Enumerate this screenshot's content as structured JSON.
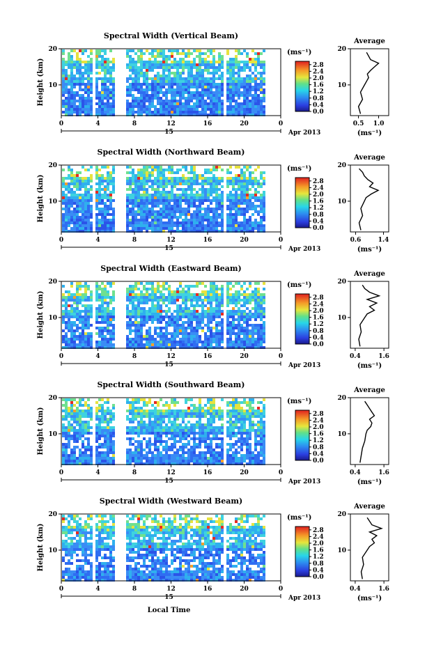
{
  "figure": {
    "xlabel": "Local Time",
    "date_label": "Apr 2013",
    "day_label": "15",
    "unit_label": "(ms⁻¹)",
    "ylabel": "Height (km)",
    "avg_title": "Average",
    "avg_xlabel": "(ms⁻¹)"
  },
  "chart_data": [
    {
      "type": "heatmap",
      "title": "Spectral Width (Vertical Beam)",
      "xlabel": "Local Time",
      "ylabel": "Height (km)",
      "x_ticks": [
        "0",
        "4",
        "8",
        "12",
        "16",
        "20",
        "0"
      ],
      "xlim": [
        0,
        24
      ],
      "y_ticks": [
        "10",
        "20"
      ],
      "ylim": [
        1.5,
        20
      ],
      "data_gaps_hours": [
        [
          3.3,
          3.6
        ],
        [
          5.8,
          6.8
        ],
        [
          17.5,
          17.8
        ],
        [
          22.2,
          24
        ]
      ],
      "colorbar": {
        "unit": "(ms⁻¹)",
        "ticks": [
          "0.0",
          "0.4",
          "0.8",
          "1.2",
          "1.6",
          "2.0",
          "2.4",
          "2.8"
        ],
        "range": [
          0,
          3.0
        ]
      },
      "average_profile": {
        "title": "Average",
        "xlabel": "(ms⁻¹)",
        "x_ticks": [
          "0.5",
          "1.0"
        ],
        "xlim": [
          0.3,
          1.25
        ],
        "height_km": [
          2,
          4,
          6,
          8,
          10,
          11,
          12,
          13,
          14,
          15,
          16,
          17,
          18,
          19
        ],
        "values": [
          0.55,
          0.5,
          0.6,
          0.55,
          0.65,
          0.7,
          0.75,
          0.72,
          0.8,
          0.9,
          1.0,
          0.8,
          0.75,
          0.7
        ]
      }
    },
    {
      "type": "heatmap",
      "title": "Spectral Width (Northward Beam)",
      "xlabel": "Local Time",
      "ylabel": "Height (km)",
      "x_ticks": [
        "0",
        "4",
        "8",
        "12",
        "16",
        "20",
        "0"
      ],
      "xlim": [
        0,
        24
      ],
      "y_ticks": [
        "10",
        "20"
      ],
      "ylim": [
        1.5,
        20
      ],
      "data_gaps_hours": [
        [
          3.3,
          3.6
        ],
        [
          5.8,
          6.8
        ],
        [
          17.5,
          17.8
        ],
        [
          22.2,
          24
        ]
      ],
      "colorbar": {
        "unit": "(ms⁻¹)",
        "ticks": [
          "0.0",
          "0.4",
          "0.8",
          "1.2",
          "1.6",
          "2.0",
          "2.4",
          "2.8"
        ],
        "range": [
          0,
          3.0
        ]
      },
      "average_profile": {
        "title": "Average",
        "xlabel": "(ms⁻¹)",
        "x_ticks": [
          "0.6",
          "1.4"
        ],
        "xlim": [
          0.45,
          1.55
        ],
        "height_km": [
          2,
          4,
          6,
          8,
          10,
          11,
          12,
          13,
          14,
          15,
          16,
          17,
          18,
          19
        ],
        "values": [
          0.75,
          0.7,
          0.8,
          0.75,
          0.85,
          0.9,
          1.05,
          1.25,
          1.0,
          1.1,
          0.95,
          0.85,
          0.8,
          0.7
        ]
      }
    },
    {
      "type": "heatmap",
      "title": "Spectral Width (Eastward Beam)",
      "xlabel": "Local Time",
      "ylabel": "Height (km)",
      "x_ticks": [
        "0",
        "4",
        "8",
        "12",
        "16",
        "20",
        "0"
      ],
      "xlim": [
        0,
        24
      ],
      "y_ticks": [
        "10",
        "20"
      ],
      "ylim": [
        1.5,
        20
      ],
      "data_gaps_hours": [
        [
          3.3,
          3.6
        ],
        [
          5.8,
          6.8
        ],
        [
          17.5,
          17.8
        ],
        [
          22.2,
          24
        ]
      ],
      "colorbar": {
        "unit": "(ms⁻¹)",
        "ticks": [
          "0.0",
          "0.4",
          "0.8",
          "1.2",
          "1.6",
          "2.0",
          "2.4",
          "2.8"
        ],
        "range": [
          0,
          3.0
        ]
      },
      "average_profile": {
        "title": "Average",
        "xlabel": "(ms⁻¹)",
        "x_ticks": [
          "0.4",
          "1.6"
        ],
        "xlim": [
          0.2,
          1.8
        ],
        "height_km": [
          2,
          4,
          6,
          8,
          10,
          11,
          12,
          13,
          14,
          15,
          16,
          17,
          18,
          19
        ],
        "values": [
          0.6,
          0.55,
          0.65,
          0.6,
          0.8,
          0.9,
          1.2,
          1.0,
          1.3,
          0.9,
          1.4,
          1.0,
          0.8,
          0.7
        ]
      }
    },
    {
      "type": "heatmap",
      "title": "Spectral Width (Southward Beam)",
      "xlabel": "Local Time",
      "ylabel": "Height (km)",
      "x_ticks": [
        "0",
        "4",
        "8",
        "12",
        "16",
        "20",
        "0"
      ],
      "xlim": [
        0,
        24
      ],
      "y_ticks": [
        "10",
        "20"
      ],
      "ylim": [
        1.5,
        20
      ],
      "data_gaps_hours": [
        [
          3.3,
          3.6
        ],
        [
          5.8,
          6.8
        ],
        [
          17.5,
          17.8
        ],
        [
          22.2,
          24
        ]
      ],
      "colorbar": {
        "unit": "(ms⁻¹)",
        "ticks": [
          "0.0",
          "0.4",
          "0.8",
          "1.2",
          "1.6",
          "2.0",
          "2.4",
          "2.8"
        ],
        "range": [
          0,
          3.0
        ]
      },
      "average_profile": {
        "title": "Average",
        "xlabel": "(ms⁻¹)",
        "x_ticks": [
          "0.4",
          "1.6"
        ],
        "xlim": [
          0.2,
          1.8
        ],
        "height_km": [
          2,
          4,
          6,
          8,
          10,
          11,
          12,
          13,
          14,
          15,
          16,
          17,
          18,
          19
        ],
        "values": [
          0.6,
          0.65,
          0.7,
          0.8,
          0.85,
          0.9,
          1.05,
          1.1,
          1.0,
          1.2,
          1.1,
          1.0,
          0.9,
          0.8
        ]
      }
    },
    {
      "type": "heatmap",
      "title": "Spectral Width (Westward Beam)",
      "xlabel": "Local Time",
      "ylabel": "Height (km)",
      "x_ticks": [
        "0",
        "4",
        "8",
        "12",
        "16",
        "20",
        "0"
      ],
      "xlim": [
        0,
        24
      ],
      "y_ticks": [
        "10",
        "20"
      ],
      "ylim": [
        1.5,
        20
      ],
      "data_gaps_hours": [
        [
          3.3,
          3.6
        ],
        [
          5.8,
          6.8
        ],
        [
          17.5,
          17.8
        ],
        [
          22.2,
          24
        ]
      ],
      "colorbar": {
        "unit": "(ms⁻¹)",
        "ticks": [
          "0.0",
          "0.4",
          "0.8",
          "1.2",
          "1.6",
          "2.0",
          "2.4",
          "2.8"
        ],
        "range": [
          0,
          3.0
        ]
      },
      "average_profile": {
        "title": "Average",
        "xlabel": "(ms⁻¹)",
        "x_ticks": [
          "0.4",
          "1.6"
        ],
        "xlim": [
          0.2,
          1.8
        ],
        "height_km": [
          2,
          4,
          6,
          8,
          10,
          11,
          12,
          13,
          14,
          15,
          16,
          17,
          18,
          19
        ],
        "values": [
          0.7,
          0.65,
          0.75,
          0.7,
          0.9,
          1.0,
          1.2,
          1.1,
          1.3,
          1.0,
          1.5,
          1.1,
          1.0,
          0.9
        ]
      }
    }
  ]
}
